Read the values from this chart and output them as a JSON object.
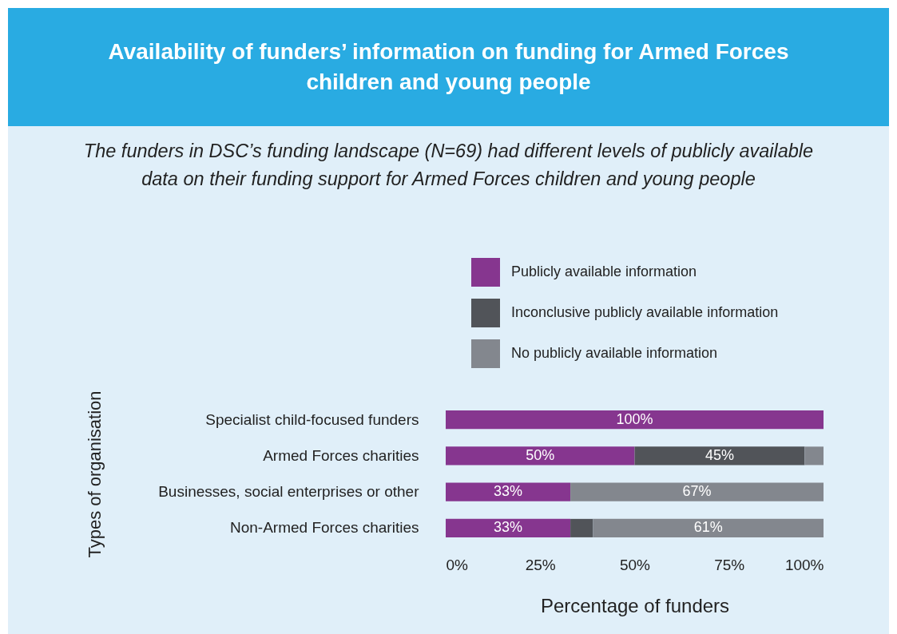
{
  "chart_data": {
    "type": "bar",
    "orientation": "horizontal",
    "stacked": true,
    "title": "Availability of funders’ information on funding for Armed Forces children and young people",
    "subtitle": "The funders in DSC’s funding landscape (N=69) had different levels of publicly available data on their funding support for Armed Forces children and young people",
    "xlabel": "Percentage of funders",
    "ylabel": "Types of organisation",
    "categories": [
      "Specialist child-focused funders",
      "Armed Forces charities",
      "Businesses, social enterprises or other",
      "Non-Armed Forces charities"
    ],
    "series": [
      {
        "name": "Publicly available information",
        "color": "#86368f",
        "values": [
          100,
          50,
          33,
          33
        ],
        "value_labels": [
          "100%",
          "50%",
          "33%",
          "33%"
        ]
      },
      {
        "name": "Inconclusive publicly available information",
        "color": "#515459",
        "values": [
          0,
          45,
          0,
          6
        ],
        "value_labels": [
          null,
          "45%",
          null,
          null
        ]
      },
      {
        "name": "No publicly available information",
        "color": "#83878e",
        "values": [
          0,
          5,
          67,
          61
        ],
        "value_labels": [
          null,
          null,
          "67%",
          "61%"
        ]
      }
    ],
    "xlim": [
      0,
      100
    ],
    "xticks": [
      {
        "value": 0,
        "label": "0%"
      },
      {
        "value": 25,
        "label": "25%"
      },
      {
        "value": 50,
        "label": "50%"
      },
      {
        "value": 75,
        "label": "75%"
      },
      {
        "value": 100,
        "label": "100%"
      }
    ],
    "legend": "top"
  }
}
